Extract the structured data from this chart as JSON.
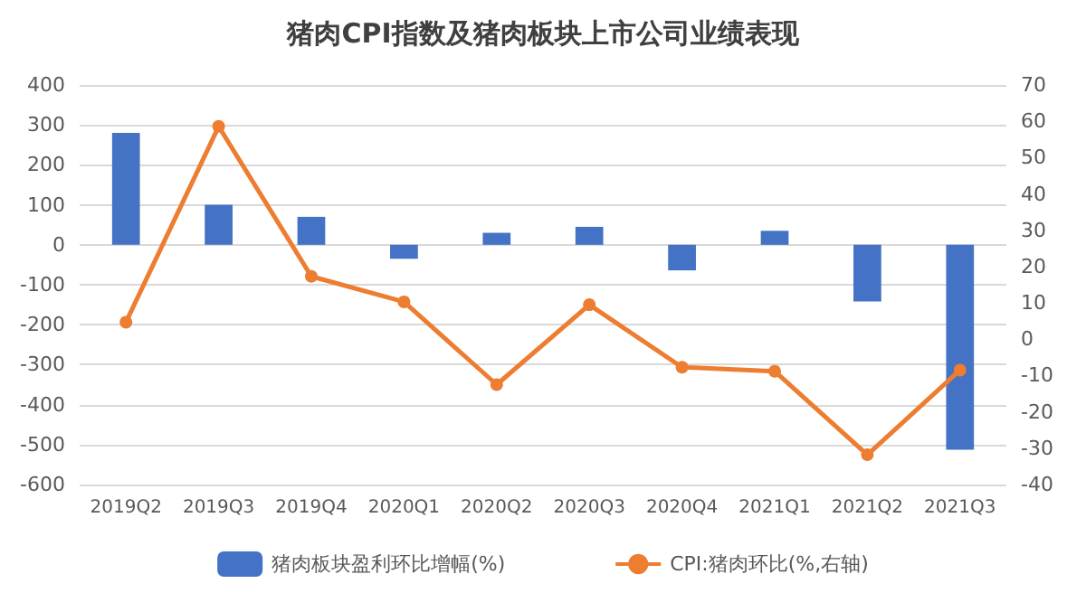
{
  "chart_data": {
    "type": "bar",
    "title": "猪肉CPI指数及猪肉板块上市公司业绩表现",
    "categories": [
      "2019Q2",
      "2019Q3",
      "2019Q4",
      "2020Q1",
      "2020Q2",
      "2020Q3",
      "2020Q4",
      "2021Q1",
      "2021Q2",
      "2021Q3"
    ],
    "series": [
      {
        "name": "猪肉板块盈利环比增幅(%)",
        "color": "#4472c4",
        "values": [
          280,
          100,
          70,
          -35,
          30,
          45,
          -64,
          35,
          -142,
          -513
        ]
      },
      {
        "name": "CPI:猪肉环比(%,右轴)",
        "type": "line",
        "axis": "y2",
        "color": "#ed7d31",
        "values": [
          4.7,
          58.6,
          17.3,
          10.3,
          -12.5,
          9.5,
          -7.7,
          -8.8,
          -31.8,
          -8.5
        ]
      }
    ],
    "ylim": [
      -600,
      400
    ],
    "yticks": [
      -600,
      -500,
      -400,
      -300,
      -200,
      -100,
      0,
      100,
      200,
      300,
      400
    ],
    "y2lim": [
      -40,
      70
    ],
    "y2ticks": [
      -40,
      -30,
      -20,
      -10,
      0,
      10,
      20,
      30,
      40,
      50,
      60,
      70
    ],
    "grid": "y",
    "legend": "bottom",
    "marker": "circle"
  }
}
